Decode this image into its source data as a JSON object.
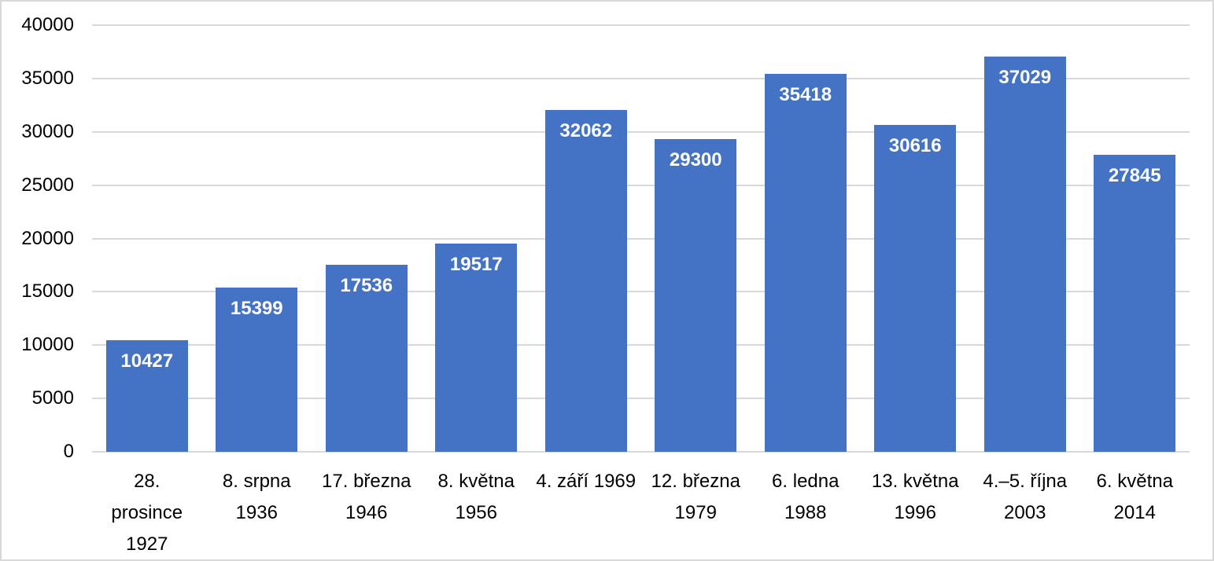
{
  "chart_data": {
    "type": "bar",
    "title": "",
    "xlabel": "",
    "ylabel": "",
    "categories": [
      "28. prosince 1927",
      "8. srpna 1936",
      "17. března 1946",
      "8. května 1956",
      "4. září 1969",
      "12. března 1979",
      "6. ledna 1988",
      "13. května 1996",
      "4.–5. října 2003",
      "6. května 2014"
    ],
    "category_label_lines": [
      [
        "28.",
        "prosince",
        "1927"
      ],
      [
        "8. srpna",
        "1936"
      ],
      [
        "17. března",
        "1946"
      ],
      [
        "8. května",
        "1956"
      ],
      [
        "4. září 1969"
      ],
      [
        "12. března",
        "1979"
      ],
      [
        "6. ledna",
        "1988"
      ],
      [
        "13. května",
        "1996"
      ],
      [
        "4.–5. října",
        "2003"
      ],
      [
        "6. května",
        "2014"
      ]
    ],
    "values": [
      10427,
      15399,
      17536,
      19517,
      32062,
      29300,
      35418,
      30616,
      37029,
      27845
    ],
    "value_labels": [
      "10427",
      "15399",
      "17536",
      "19517",
      "32062",
      "29300",
      "35418",
      "30616",
      "37029",
      "27845"
    ],
    "ylim": [
      0,
      40000
    ],
    "y_ticks": [
      0,
      5000,
      10000,
      15000,
      20000,
      25000,
      30000,
      35000,
      40000
    ],
    "y_tick_labels": [
      "0",
      "5000",
      "10000",
      "15000",
      "20000",
      "25000",
      "30000",
      "35000",
      "40000"
    ],
    "grid": true,
    "legend": "none",
    "bar_color": "#4472c4",
    "value_label_color": "#ffffff",
    "gridline_color": "#d9d9d9",
    "axis_text_color": "#000000"
  }
}
